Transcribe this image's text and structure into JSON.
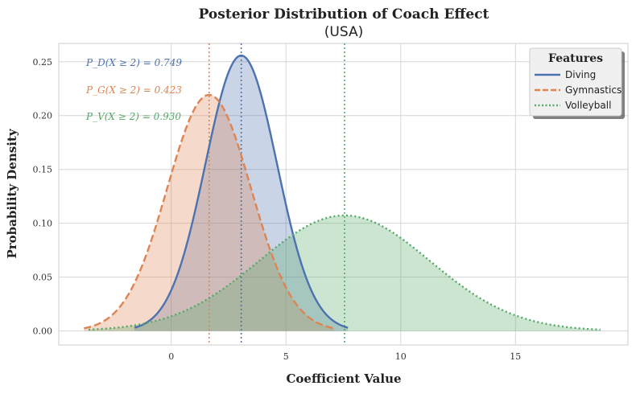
{
  "chart_data": {
    "type": "area",
    "title": "Posterior Distribution of Coach Effect",
    "subtitle": "(USA)",
    "xlabel": "Coefficient Value",
    "ylabel": "Probability Density",
    "xlim": [
      -4.9,
      19.9
    ],
    "ylim": [
      -0.013,
      0.267
    ],
    "xticks": [
      0,
      5,
      10,
      15
    ],
    "yticks": [
      0.0,
      0.05,
      0.1,
      0.15,
      0.2,
      0.25
    ],
    "xtick_labels": [
      "0",
      "5",
      "10",
      "15"
    ],
    "ytick_labels": [
      "0.00",
      "0.05",
      "0.10",
      "0.15",
      "0.20",
      "0.25"
    ],
    "grid": true,
    "legend": {
      "title": "Features",
      "position": "top-right"
    },
    "series": [
      {
        "name": "Diving",
        "color": "#4c72b0",
        "linestyle": "solid",
        "mean": 3.05,
        "sd": 1.56,
        "x_range": [
          -1.6,
          7.7
        ],
        "vline": 3.05,
        "annotation": "P_D(X ≥ 2) = 0.749"
      },
      {
        "name": "Gymnastics",
        "color": "#dd8452",
        "linestyle": "dashed",
        "mean": 1.65,
        "sd": 1.82,
        "x_range": [
          -3.8,
          7.1
        ],
        "vline": 1.65,
        "annotation": "P_G(X ≥ 2) = 0.423"
      },
      {
        "name": "Volleyball",
        "color": "#55a868",
        "linestyle": "dotted",
        "mean": 7.55,
        "sd": 3.72,
        "x_range": [
          -3.6,
          18.7
        ],
        "vline": 7.55,
        "annotation": "P_V(X ≥ 2) = 0.930"
      }
    ]
  }
}
